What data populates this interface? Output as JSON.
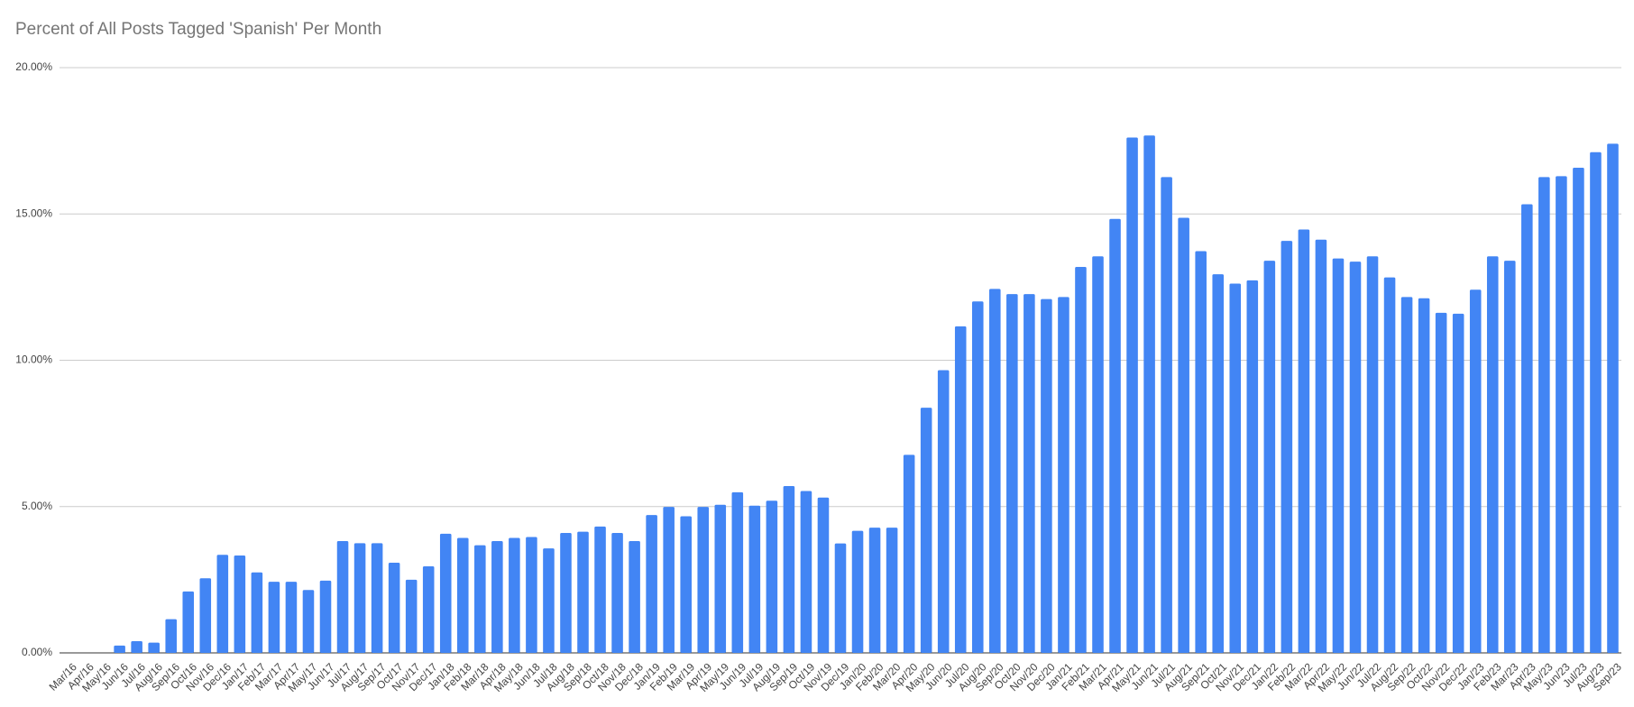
{
  "chart_data": {
    "type": "bar",
    "title": "Percent of All Posts Tagged 'Spanish' Per Month",
    "categories": [
      "Mar/16",
      "Apr/16",
      "May/16",
      "Jun/16",
      "Jul/16",
      "Aug/16",
      "Sep/16",
      "Oct/16",
      "Nov/16",
      "Dec/16",
      "Jan/17",
      "Feb/17",
      "Mar/17",
      "Apr/17",
      "May/17",
      "Jun/17",
      "Jul/17",
      "Aug/17",
      "Sep/17",
      "Oct/17",
      "Nov/17",
      "Dec/17",
      "Jan/18",
      "Feb/18",
      "Mar/18",
      "Apr/18",
      "May/18",
      "Jun/18",
      "Jul/18",
      "Aug/18",
      "Sep/18",
      "Oct/18",
      "Nov/18",
      "Dec/18",
      "Jan/19",
      "Feb/19",
      "Mar/19",
      "Apr/19",
      "May/19",
      "Jun/19",
      "Jul/19",
      "Aug/19",
      "Sep/19",
      "Oct/19",
      "Nov/19",
      "Dec/19",
      "Jan/20",
      "Feb/20",
      "Mar/20",
      "Apr/20",
      "May/20",
      "Jun/20",
      "Jul/20",
      "Aug/20",
      "Sep/20",
      "Oct/20",
      "Nov/20",
      "Dec/20",
      "Jan/21",
      "Feb/21",
      "Mar/21",
      "Apr/21",
      "May/21",
      "Jun/21",
      "Jul/21",
      "Aug/21",
      "Sep/21",
      "Oct/21",
      "Nov/21",
      "Dec/21",
      "Jan/22",
      "Feb/22",
      "Mar/22",
      "Apr/22",
      "May/22",
      "Jun/22",
      "Jul/22",
      "Aug/22",
      "Sep/22",
      "Oct/22",
      "Nov/22",
      "Dec/22",
      "Jan/23",
      "Feb/23",
      "Mar/23",
      "Apr/23",
      "May/23",
      "Jun/23",
      "Jul/23",
      "Aug/23",
      "Sep/23"
    ],
    "values": [
      0,
      0,
      0,
      0.25,
      0.4,
      0.35,
      1.15,
      2.1,
      2.55,
      3.35,
      3.33,
      2.75,
      2.43,
      2.43,
      2.15,
      2.47,
      3.82,
      3.75,
      3.75,
      3.08,
      2.5,
      2.96,
      4.07,
      3.93,
      3.68,
      3.82,
      3.93,
      3.96,
      3.57,
      4.1,
      4.14,
      4.32,
      4.1,
      3.82,
      4.71,
      4.99,
      4.67,
      4.99,
      5.06,
      5.49,
      5.03,
      5.2,
      5.7,
      5.53,
      5.31,
      3.74,
      4.17,
      4.28,
      4.28,
      6.77,
      8.38,
      9.66,
      11.16,
      12.01,
      12.44,
      12.26,
      12.26,
      12.09,
      12.16,
      13.19,
      13.55,
      14.83,
      17.61,
      17.68,
      16.26,
      14.87,
      13.73,
      12.94,
      12.62,
      12.73,
      13.4,
      14.08,
      14.47,
      14.12,
      13.48,
      13.37,
      13.55,
      12.83,
      12.16,
      12.12,
      11.62,
      11.59,
      12.41,
      13.55,
      13.4,
      15.33,
      16.26,
      16.29,
      16.58,
      17.11,
      17.4
    ],
    "color": "#4285f4",
    "ylim": [
      0,
      20
    ],
    "yticks": [
      {
        "value": 0,
        "label": "0.00%"
      },
      {
        "value": 5,
        "label": "5.00%"
      },
      {
        "value": 10,
        "label": "10.00%"
      },
      {
        "value": 15,
        "label": "15.00%"
      },
      {
        "value": 20,
        "label": "20.00%"
      }
    ],
    "grid": true
  }
}
